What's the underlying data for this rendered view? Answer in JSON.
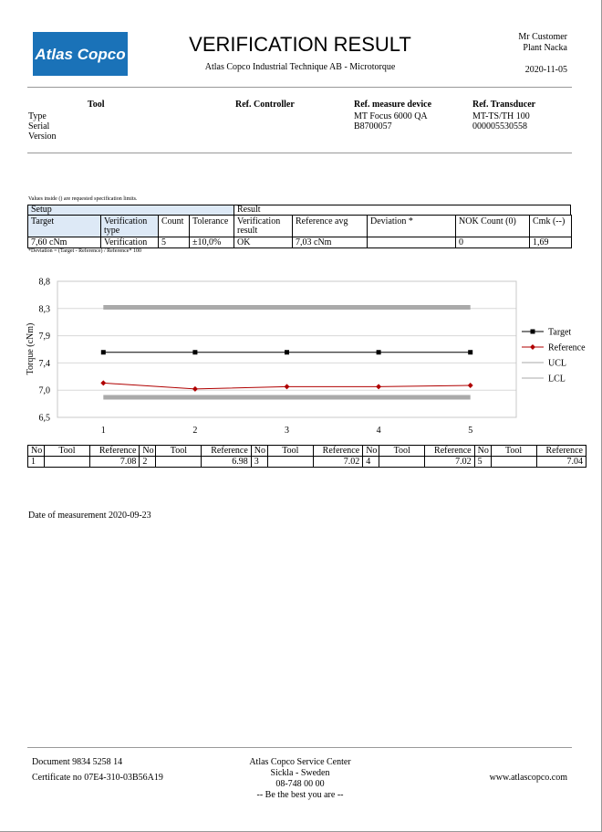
{
  "header": {
    "logo": "Atlas Copco",
    "title": "VERIFICATION RESULT",
    "subtitle": "Atlas Copco Industrial Technique AB - Microtorque",
    "customer": "Mr Customer",
    "plant": "Plant Nacka",
    "date": "2020-11-05"
  },
  "info": {
    "columns": [
      {
        "heading": "Tool",
        "lines": [
          "Type",
          "Serial",
          "Version"
        ]
      },
      {
        "heading": "Ref. Controller",
        "lines": []
      },
      {
        "heading": "Ref. measure device",
        "lines": [
          "MT Focus 6000 QA",
          "B8700057"
        ]
      },
      {
        "heading": "Ref. Transducer",
        "lines": [
          "MT-TS/TH 100",
          "000005530558"
        ]
      }
    ]
  },
  "setup": {
    "note": "Values inside () are requested specification limits.",
    "groups": [
      "Setup",
      "Result"
    ],
    "headers": [
      "Target",
      "Verification type",
      "Count",
      "Tolerance",
      "Verification result",
      "Reference avg",
      "Deviation *",
      "NOK Count (0)",
      "Cmk (--)"
    ],
    "row": [
      "7,60 cNm",
      "Verification",
      5,
      "±10,0%",
      "OK",
      "7,03 cNm",
      null,
      0,
      "1,69"
    ],
    "footnote": "*Deviation = (Target - Reference) / Reference* 100"
  },
  "chart_data": {
    "type": "line",
    "y_label": "Torque (cNm)",
    "x": [
      1,
      2,
      3,
      4,
      5
    ],
    "xlim": [
      0.5,
      5.5
    ],
    "xticks": [
      1,
      2,
      3,
      4,
      5
    ],
    "ylim": [
      6.5,
      8.8
    ],
    "yticks": [
      {
        "value": 6.5,
        "label": "6,5"
      },
      {
        "value": 6.96,
        "label": "7,0"
      },
      {
        "value": 7.42,
        "label": "7,4"
      },
      {
        "value": 7.88,
        "label": "7,9"
      },
      {
        "value": 8.34,
        "label": "8,3"
      },
      {
        "value": 8.8,
        "label": "8,8"
      }
    ],
    "grid": true,
    "legend": "right",
    "series": [
      {
        "name": "Target",
        "color": "#000000",
        "marker": "square",
        "values": [
          7.6,
          7.6,
          7.6,
          7.6,
          7.6
        ]
      },
      {
        "name": "Reference",
        "color": "#b00000",
        "marker": "diamond",
        "values": [
          7.08,
          6.98,
          7.02,
          7.02,
          7.04
        ]
      },
      {
        "name": "UCL",
        "color": "#aaaaaa",
        "values": [
          8.36,
          8.36,
          8.36,
          8.36,
          8.36
        ]
      },
      {
        "name": "LCL",
        "color": "#aaaaaa",
        "values": [
          6.84,
          6.84,
          6.84,
          6.84,
          6.84
        ]
      }
    ]
  },
  "measurements": {
    "headers": [
      "No",
      "Tool",
      "Reference"
    ],
    "rows": [
      {
        "no": 1,
        "reference": 7.08
      },
      {
        "no": 2,
        "reference": 6.98
      },
      {
        "no": 3,
        "reference": 7.02
      },
      {
        "no": 4,
        "reference": 7.02
      },
      {
        "no": 5,
        "reference": 7.04
      }
    ]
  },
  "date_of_measurement": "Date of measurement 2020-09-23",
  "footer": {
    "document": "Document 9834 5258 14",
    "certificate": "Certificate no 07E4-310-03B56A19",
    "center": [
      "Atlas Copco Service Center",
      "Sickla - Sweden",
      "08-748 00 00",
      "-- Be the best you are --"
    ],
    "website": "www.atlascopco.com"
  }
}
